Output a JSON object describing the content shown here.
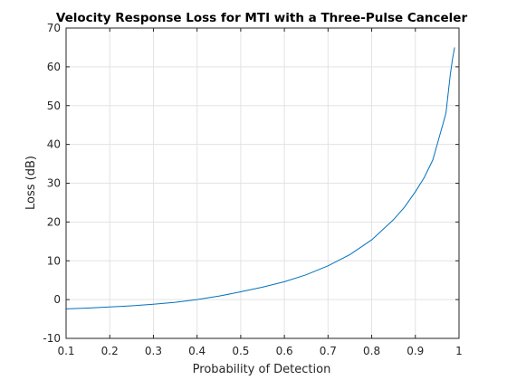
{
  "chart_data": {
    "type": "line",
    "title": "Velocity Response Loss for MTI with a Three-Pulse Canceler",
    "xlabel": "Probability of Detection",
    "ylabel": "Loss (dB)",
    "xlim": [
      0.1,
      1
    ],
    "ylim": [
      -10,
      70
    ],
    "xticks": [
      0.1,
      0.2,
      0.3,
      0.4,
      0.5,
      0.6,
      0.7,
      0.8,
      0.9,
      1
    ],
    "xtick_labels": [
      "0.1",
      "0.2",
      "0.3",
      "0.4",
      "0.5",
      "0.6",
      "0.7",
      "0.8",
      "0.9",
      "1"
    ],
    "yticks": [
      -10,
      0,
      10,
      20,
      30,
      40,
      50,
      60,
      70
    ],
    "ytick_labels": [
      "-10",
      "0",
      "10",
      "20",
      "30",
      "40",
      "50",
      "60",
      "70"
    ],
    "grid": true,
    "series": [
      {
        "color": "#0072bd",
        "x": [
          0.1,
          0.15,
          0.2,
          0.25,
          0.3,
          0.35,
          0.4,
          0.45,
          0.5,
          0.55,
          0.6,
          0.65,
          0.7,
          0.75,
          0.8,
          0.85,
          0.875,
          0.9,
          0.92,
          0.94,
          0.95,
          0.96,
          0.97,
          0.98,
          0.985,
          0.99
        ],
        "y": [
          -2.4,
          -2.2,
          -1.9,
          -1.6,
          -1.2,
          -0.7,
          0.0,
          0.9,
          2.0,
          3.2,
          4.6,
          6.4,
          8.7,
          11.6,
          15.4,
          20.6,
          23.8,
          27.8,
          31.4,
          36.0,
          40.0,
          44.0,
          48.0,
          58.0,
          62.0,
          65.0
        ]
      }
    ]
  }
}
